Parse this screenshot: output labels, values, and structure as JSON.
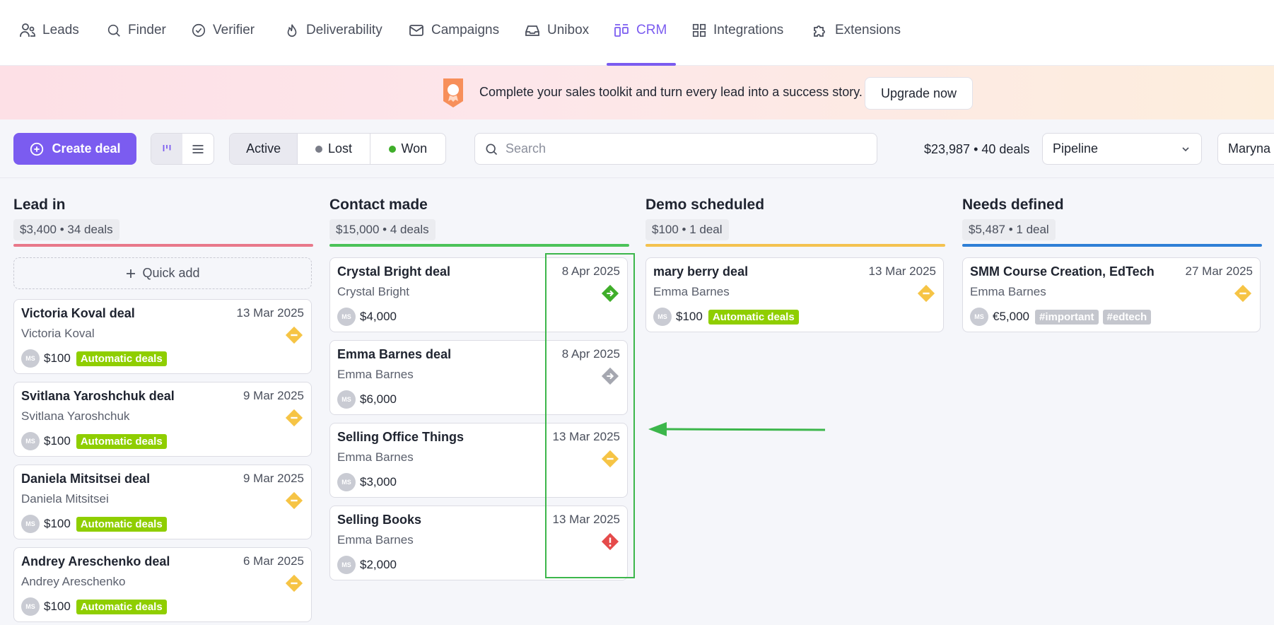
{
  "nav": {
    "items": [
      {
        "label": "Leads",
        "icon": "users-icon"
      },
      {
        "label": "Finder",
        "icon": "search-icon"
      },
      {
        "label": "Verifier",
        "icon": "check-circle-icon"
      },
      {
        "label": "Deliverability",
        "icon": "flame-icon"
      },
      {
        "label": "Campaigns",
        "icon": "mail-icon"
      },
      {
        "label": "Unibox",
        "icon": "inbox-icon"
      },
      {
        "label": "CRM",
        "icon": "crm-icon",
        "active": true
      },
      {
        "label": "Integrations",
        "icon": "grid-icon"
      },
      {
        "label": "Extensions",
        "icon": "puzzle-icon"
      }
    ]
  },
  "banner": {
    "text": "Complete your sales toolkit and turn every lead into a success story.",
    "button": "Upgrade now"
  },
  "toolbar": {
    "create_label": "Create deal",
    "status_tabs": [
      "Active",
      "Lost",
      "Won"
    ],
    "search_placeholder": "Search",
    "summary": "$23,987 • 40 deals",
    "pipeline_value": "Pipeline",
    "owner_value": "Maryna S"
  },
  "columns": [
    {
      "title": "Lead in",
      "stats": "$3,400 • 34 deals",
      "color": "#e8788a",
      "quick_add": "Quick add",
      "cards": [
        {
          "title": "Victoria Koval deal",
          "date": "13 Mar 2025",
          "contact": "Victoria Koval",
          "avatar": "MS",
          "value": "$100",
          "tags": [
            "Automatic deals"
          ],
          "status": "yellow-minus"
        },
        {
          "title": "Svitlana Yaroshchuk deal",
          "date": "9 Mar 2025",
          "contact": "Svitlana Yaroshchuk",
          "avatar": "MS",
          "value": "$100",
          "tags": [
            "Automatic deals"
          ],
          "status": "yellow-minus"
        },
        {
          "title": "Daniela Mitsitsei deal",
          "date": "9 Mar 2025",
          "contact": "Daniela Mitsitsei",
          "avatar": "MS",
          "value": "$100",
          "tags": [
            "Automatic deals"
          ],
          "status": "yellow-minus"
        },
        {
          "title": "Andrey Areschenko deal",
          "date": "6 Mar 2025",
          "contact": "Andrey Areschenko",
          "avatar": "MS",
          "value": "$100",
          "tags": [
            "Automatic deals"
          ],
          "status": "yellow-minus"
        }
      ]
    },
    {
      "title": "Contact made",
      "stats": "$15,000 • 4 deals",
      "color": "#4cc35a",
      "cards": [
        {
          "title": "Crystal Bright deal",
          "date": "8 Apr 2025",
          "contact": "Crystal Bright",
          "avatar": "MS",
          "value": "$4,000",
          "tags": [],
          "status": "green-arrow"
        },
        {
          "title": "Emma Barnes deal",
          "date": "8 Apr 2025",
          "contact": "Emma Barnes",
          "avatar": "MS",
          "value": "$6,000",
          "tags": [],
          "status": "grey-arrow"
        },
        {
          "title": "Selling Office Things",
          "date": "13 Mar 2025",
          "contact": "Emma Barnes",
          "avatar": "MS",
          "value": "$3,000",
          "tags": [],
          "status": "yellow-minus"
        },
        {
          "title": "Selling Books",
          "date": "13 Mar 2025",
          "contact": "Emma Barnes",
          "avatar": "MS",
          "value": "$2,000",
          "tags": [],
          "status": "red-alert"
        }
      ]
    },
    {
      "title": "Demo scheduled",
      "stats": "$100 • 1 deal",
      "color": "#f4c24f",
      "cards": [
        {
          "title": "mary berry deal",
          "date": "13 Mar 2025",
          "contact": "Emma Barnes",
          "avatar": "MS",
          "value": "$100",
          "tags": [
            "Automatic deals"
          ],
          "status": "yellow-minus"
        }
      ]
    },
    {
      "title": "Needs defined",
      "stats": "$5,487 • 1 deal",
      "color": "#2f7fd6",
      "cards": [
        {
          "title": "SMM Course Creation, EdTech",
          "date": "27 Mar 2025",
          "contact": "Emma Barnes",
          "avatar": "MS",
          "value": "€5,000",
          "tags": [
            "#important",
            "#edtech"
          ],
          "status": "yellow-minus"
        }
      ]
    }
  ],
  "colors": {
    "accent": "#7b5cf0",
    "status_green": "#3fae2a",
    "status_yellow": "#f6c445",
    "status_red": "#e54b4b",
    "status_grey": "#a5a7b0",
    "tag_auto": "#8fce00",
    "annotation": "#3cb64b"
  }
}
